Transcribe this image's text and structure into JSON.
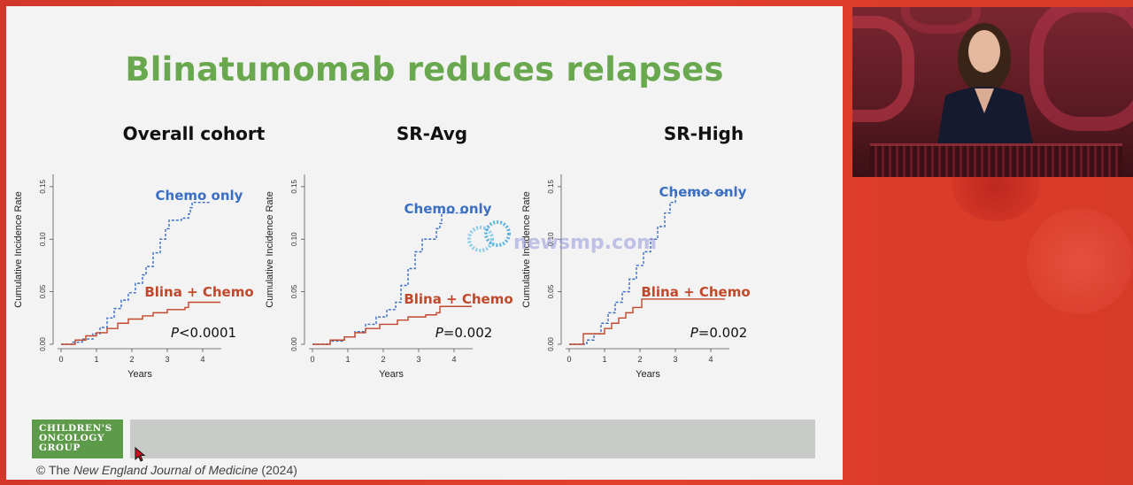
{
  "slide": {
    "title": "Blinatumomab reduces relapses",
    "logo_lines": [
      "CHILDREN'S",
      "ONCOLOGY",
      "GROUP"
    ],
    "copyright_prefix": "© The ",
    "copyright_journal": "New England Journal of Medicine",
    "copyright_suffix": " (2024)",
    "watermark": "newsmp.com"
  },
  "colors": {
    "title_green": "#6aa84f",
    "chemo_blue": "#3b6fc4",
    "blina_red": "#c0492c",
    "background_red": "#e3402c"
  },
  "chart_data": [
    {
      "type": "line",
      "panel_title": "Overall cohort",
      "xlabel": "Years",
      "ylabel": "Cumulative Incidence Rate",
      "xlim": [
        0,
        4.5
      ],
      "ylim": [
        0,
        0.16
      ],
      "xticks": [
        "0",
        "1",
        "2",
        "3",
        "4"
      ],
      "yticks": [
        "0.00",
        "0.05",
        "0.10",
        "0.15"
      ],
      "pvalue_italic": "P",
      "pvalue_rest": "<0.0001",
      "series": [
        {
          "name": "Chemo only",
          "style": "dashed",
          "x": [
            0,
            0.3,
            0.6,
            0.9,
            1.1,
            1.3,
            1.5,
            1.7,
            1.9,
            2.1,
            2.3,
            2.4,
            2.6,
            2.8,
            2.95,
            3.05,
            3.4,
            3.6,
            3.65,
            3.7,
            4.2
          ],
          "y": [
            0,
            0.002,
            0.005,
            0.01,
            0.016,
            0.025,
            0.034,
            0.042,
            0.049,
            0.058,
            0.066,
            0.074,
            0.087,
            0.1,
            0.11,
            0.118,
            0.12,
            0.124,
            0.13,
            0.135,
            0.135
          ]
        },
        {
          "name": "Blina + Chemo",
          "style": "solid",
          "x": [
            0,
            0.4,
            0.7,
            1.0,
            1.3,
            1.6,
            1.9,
            2.3,
            2.6,
            3.0,
            3.5,
            3.6,
            4.5
          ],
          "y": [
            0,
            0.004,
            0.008,
            0.011,
            0.015,
            0.02,
            0.024,
            0.027,
            0.03,
            0.033,
            0.035,
            0.04,
            0.04
          ]
        }
      ]
    },
    {
      "type": "line",
      "panel_title": "SR-Avg",
      "xlabel": "Years",
      "ylabel": "Cumulative Incidence Rate",
      "xlim": [
        0,
        4.5
      ],
      "ylim": [
        0,
        0.16
      ],
      "xticks": [
        "0",
        "1",
        "2",
        "3",
        "4"
      ],
      "yticks": [
        "0.00",
        "0.05",
        "0.10",
        "0.15"
      ],
      "pvalue_italic": "P",
      "pvalue_rest": "=0.002",
      "series": [
        {
          "name": "Chemo only",
          "style": "dashed",
          "x": [
            0,
            0.5,
            0.9,
            1.2,
            1.5,
            1.8,
            2.1,
            2.35,
            2.5,
            2.7,
            2.9,
            3.1,
            3.35,
            3.5,
            3.6,
            3.65,
            4.4
          ],
          "y": [
            0,
            0.003,
            0.007,
            0.012,
            0.019,
            0.026,
            0.033,
            0.04,
            0.056,
            0.072,
            0.088,
            0.1,
            0.1,
            0.11,
            0.115,
            0.125,
            0.125
          ]
        },
        {
          "name": "Blina + Chemo",
          "style": "solid",
          "x": [
            0,
            0.5,
            0.9,
            1.2,
            1.5,
            1.9,
            2.4,
            2.7,
            3.2,
            3.5,
            3.6,
            4.5
          ],
          "y": [
            0,
            0.004,
            0.007,
            0.011,
            0.015,
            0.019,
            0.023,
            0.026,
            0.028,
            0.03,
            0.036,
            0.036
          ]
        }
      ]
    },
    {
      "type": "line",
      "panel_title": "SR-High",
      "xlabel": "Years",
      "ylabel": "Cumulative Incidence Rate",
      "xlim": [
        0,
        4.5
      ],
      "ylim": [
        0,
        0.16
      ],
      "xticks": [
        "0",
        "1",
        "2",
        "3",
        "4"
      ],
      "yticks": [
        "0.00",
        "0.05",
        "0.10",
        "0.15"
      ],
      "pvalue_italic": "P",
      "pvalue_rest": "=0.002",
      "series": [
        {
          "name": "Chemo only",
          "style": "dashed",
          "x": [
            0,
            0.5,
            0.7,
            0.9,
            1.1,
            1.3,
            1.5,
            1.7,
            1.9,
            2.1,
            2.3,
            2.5,
            2.7,
            2.85,
            3.0,
            4.4
          ],
          "y": [
            0,
            0.004,
            0.01,
            0.02,
            0.03,
            0.04,
            0.05,
            0.062,
            0.075,
            0.088,
            0.1,
            0.112,
            0.125,
            0.135,
            0.144,
            0.144
          ]
        },
        {
          "name": "Blina + Chemo",
          "style": "solid",
          "x": [
            0,
            0.4,
            0.7,
            1.0,
            1.2,
            1.4,
            1.6,
            1.8,
            2.05,
            4.4
          ],
          "y": [
            0,
            0.01,
            0.01,
            0.015,
            0.02,
            0.025,
            0.03,
            0.035,
            0.043,
            0.043
          ]
        }
      ]
    }
  ]
}
